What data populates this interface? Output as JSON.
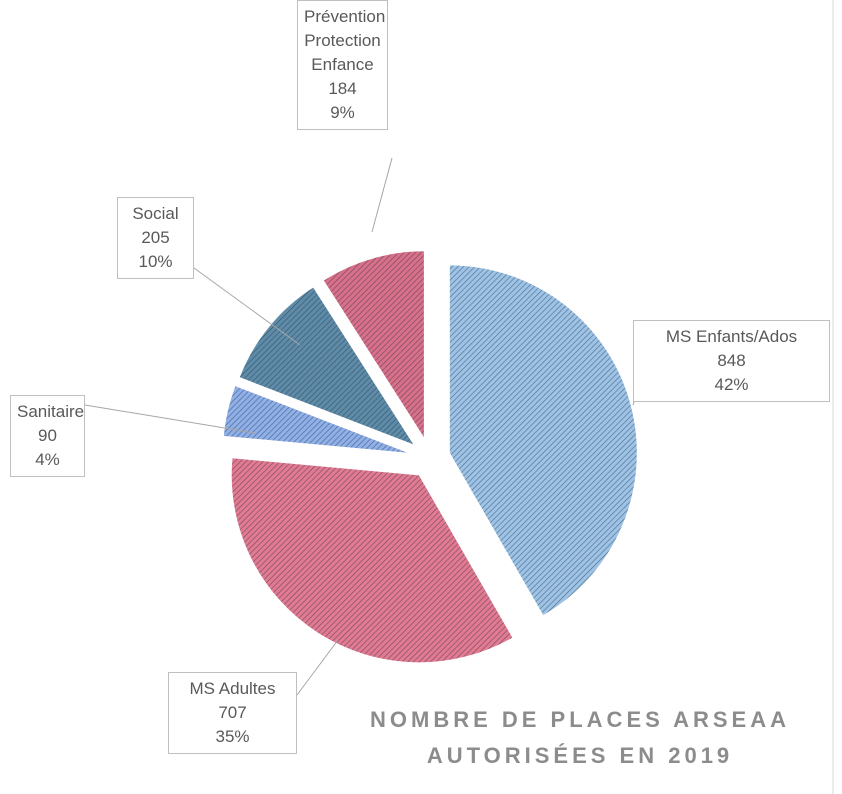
{
  "chart_data": {
    "type": "pie",
    "title": "NOMBRE DE PLACES ARSEAA AUTORISÉES EN 2019",
    "categories": [
      "MS Enfants/Ados",
      "MS Adultes",
      "Sanitaire",
      "Social",
      "Prévention Protection Enfance"
    ],
    "values": [
      848,
      707,
      90,
      205,
      184
    ],
    "percent_labels": [
      "42%",
      "35%",
      "4%",
      "10%",
      "9%"
    ],
    "colors": [
      "#9dc3e6",
      "#e27a92",
      "#8fb0e8",
      "#5e8ca8",
      "#d9708a"
    ]
  }
}
